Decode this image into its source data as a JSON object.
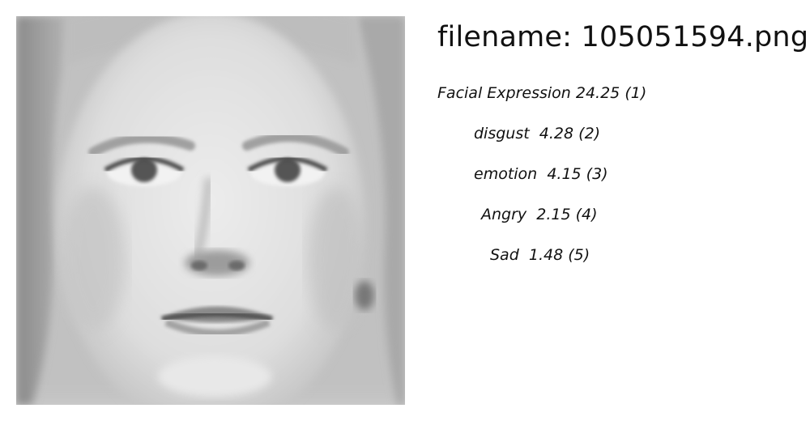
{
  "filename_text": "filename: 105051594.png",
  "labels": [
    {
      "name": "Facial Expression",
      "score": "24.25",
      "rank": "(1)"
    },
    {
      "name": "disgust",
      "score": "4.28",
      "rank": "(2)"
    },
    {
      "name": "emotion",
      "score": "4.15",
      "rank": "(3)"
    },
    {
      "name": "Angry",
      "score": "2.15",
      "rank": "(4)"
    },
    {
      "name": "Sad",
      "score": "1.48",
      "rank": "(5)"
    }
  ]
}
